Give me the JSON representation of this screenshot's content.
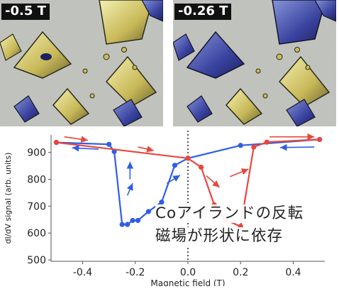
{
  "images": [
    {
      "label": "-0.5 T",
      "mode": "up"
    },
    {
      "label": "-0.26 T",
      "mode": "switched"
    }
  ],
  "caption": {
    "line1": "Coアイランドの反転",
    "line2": "磁場が形状に依存"
  },
  "chart_data": {
    "type": "line",
    "title": "",
    "xlabel": "Magnetic field (T)",
    "ylabel": "dI/dV signal (arb. units)",
    "xlim": [
      -0.52,
      0.52
    ],
    "ylim": [
      495,
      965
    ],
    "xticks": [
      -0.4,
      -0.2,
      0.0,
      0.2,
      0.4
    ],
    "xtick_labels": [
      "-0.4",
      "-0.2",
      "0.0",
      "0.2",
      "0.4"
    ],
    "yticks": [
      500,
      600,
      700,
      800,
      900
    ],
    "ytick_labels": [
      "500",
      "600",
      "700",
      "800",
      "900"
    ],
    "grid": false,
    "zero_line": true,
    "series": [
      {
        "color": "#2f5ee6",
        "points": [
          [
            -0.5,
            937
          ],
          [
            -0.3,
            930
          ],
          [
            -0.28,
            903
          ],
          [
            -0.25,
            632
          ],
          [
            -0.23,
            632
          ],
          [
            -0.21,
            647
          ],
          [
            -0.19,
            647
          ],
          [
            -0.15,
            680
          ],
          [
            -0.1,
            715
          ],
          [
            -0.05,
            852
          ],
          [
            0.0,
            878
          ],
          [
            0.2,
            926
          ],
          [
            0.5,
            948
          ]
        ]
      },
      {
        "color": "#e8463c",
        "points": [
          [
            -0.5,
            937
          ],
          [
            0.0,
            878
          ],
          [
            0.05,
            845
          ],
          [
            0.1,
            705
          ],
          [
            0.14,
            650
          ],
          [
            0.2,
            625
          ],
          [
            0.25,
            920
          ],
          [
            0.3,
            938
          ],
          [
            0.5,
            948
          ]
        ]
      }
    ],
    "arrows": [
      {
        "color": "#e8463c",
        "from": [
          -0.47,
          958
        ],
        "to": [
          -0.38,
          945
        ]
      },
      {
        "color": "#2f5ee6",
        "from": [
          -0.34,
          912
        ],
        "to": [
          -0.44,
          917
        ]
      },
      {
        "color": "#2f5ee6",
        "from": [
          -0.22,
          800
        ],
        "to": [
          -0.22,
          865
        ]
      },
      {
        "color": "#2f5ee6",
        "from": [
          -0.23,
          740
        ],
        "to": [
          -0.21,
          785
        ]
      },
      {
        "color": "#2f5ee6",
        "from": [
          -0.08,
          785
        ],
        "to": [
          -0.03,
          815
        ]
      },
      {
        "color": "#e8463c",
        "from": [
          -0.19,
          920
        ],
        "to": [
          -0.13,
          907
        ]
      },
      {
        "color": "#e8463c",
        "from": [
          0.07,
          813
        ],
        "to": [
          0.12,
          770
        ]
      },
      {
        "color": "#e8463c",
        "from": [
          0.16,
          810
        ],
        "to": [
          0.23,
          838
        ]
      },
      {
        "color": "#e8463c",
        "from": [
          0.31,
          958
        ],
        "to": [
          0.48,
          958
        ]
      },
      {
        "color": "#2f5ee6",
        "from": [
          0.48,
          920
        ],
        "to": [
          0.35,
          918
        ]
      }
    ]
  }
}
